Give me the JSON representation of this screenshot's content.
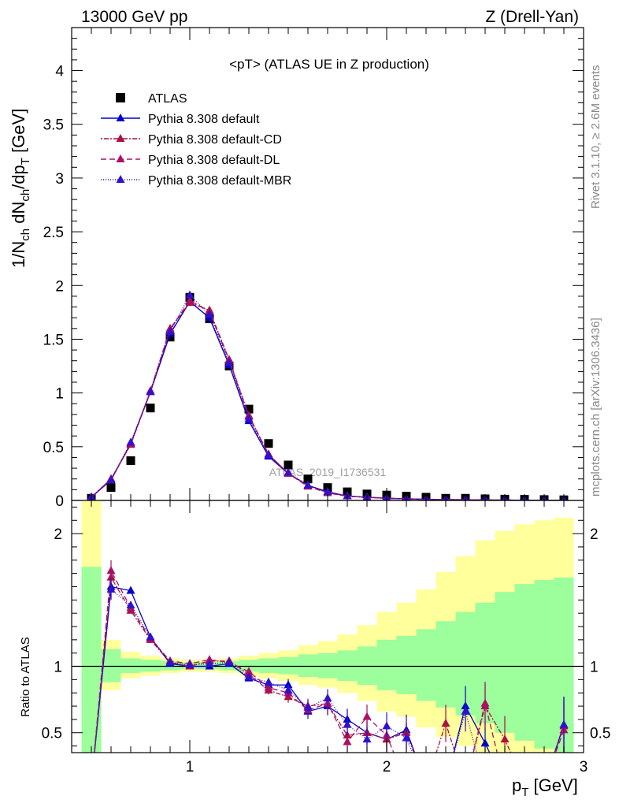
{
  "header": {
    "energy_label": "13000 GeV pp",
    "process_label": "Z (Drell-Yan)",
    "plot_title": "<pT> (ATLAS UE in Z production)",
    "watermark": "ATLAS_2019_I1736531",
    "side_rivet": "Rivet 3.1.10, ≥ 2.6M events",
    "side_mcplots": "mcplots.cern.ch [arXiv:1306.3436]"
  },
  "axes": {
    "main_ylabel": "1/N_ch dN_ch/dp_T [GeV]",
    "ratio_ylabel": "Ratio to ATLAS",
    "xlabel": "p_T [GeV]"
  },
  "chart_data": {
    "type": "line",
    "x": [
      0.5,
      0.6,
      0.7,
      0.8,
      0.9,
      1.0,
      1.1,
      1.2,
      1.3,
      1.4,
      1.5,
      1.6,
      1.7,
      1.8,
      1.9,
      2.0,
      2.1,
      2.2,
      2.3,
      2.4,
      2.5,
      2.6,
      2.7,
      2.8,
      2.9
    ],
    "xlim": [
      0.4,
      3.0
    ],
    "ylim": [
      0,
      4.4
    ],
    "yticks": [
      0,
      0.5,
      1,
      1.5,
      2,
      2.5,
      3,
      3.5,
      4
    ],
    "xticks": [
      1,
      2,
      3
    ],
    "ratio_ylim": [
      0.35,
      2.25
    ],
    "ratio_yticks": [
      0.5,
      1,
      2
    ],
    "legend_position": "top-left",
    "series": [
      {
        "name": "ATLAS",
        "color": "#000000",
        "marker": "square",
        "style": "points",
        "values": [
          0.02,
          0.12,
          0.37,
          0.86,
          1.52,
          1.89,
          1.69,
          1.25,
          0.85,
          0.53,
          0.33,
          0.2,
          0.12,
          0.08,
          0.06,
          0.05,
          0.04,
          0.03,
          0.02,
          0.02,
          0.015,
          0.012,
          0.01,
          0.008,
          0.006
        ]
      },
      {
        "name": "Pythia 8.308 default",
        "color": "#0000cc",
        "marker": "triangle",
        "dash": "",
        "values": [
          0.03,
          0.19,
          0.53,
          1.01,
          1.55,
          1.85,
          1.7,
          1.26,
          0.74,
          0.41,
          0.25,
          0.14,
          0.08,
          0.04,
          0.03,
          0.02,
          0.015,
          0.01,
          0.008,
          0.006,
          0.004,
          0.003,
          0.002,
          0.002,
          0.001
        ]
      },
      {
        "name": "Pythia 8.308 default-CD",
        "color": "#aa1144",
        "marker": "triangle",
        "dash": "2,2,6,2",
        "values": [
          0.03,
          0.2,
          0.52,
          1.02,
          1.6,
          1.84,
          1.77,
          1.31,
          0.79,
          0.43,
          0.25,
          0.14,
          0.07,
          0.04,
          0.03,
          0.02,
          0.015,
          0.01,
          0.008,
          0.006,
          0.004,
          0.003,
          0.002,
          0.002,
          0.001
        ]
      },
      {
        "name": "Pythia 8.308 default-DL",
        "color": "#aa1166",
        "marker": "triangle",
        "dash": "7,4",
        "values": [
          0.03,
          0.2,
          0.52,
          1.01,
          1.59,
          1.86,
          1.76,
          1.3,
          0.78,
          0.43,
          0.25,
          0.13,
          0.07,
          0.04,
          0.03,
          0.02,
          0.015,
          0.01,
          0.008,
          0.006,
          0.004,
          0.003,
          0.002,
          0.002,
          0.001
        ]
      },
      {
        "name": "Pythia 8.308 default-MBR",
        "color": "#3311cc",
        "marker": "triangle",
        "dash": "1,2",
        "values": [
          0.03,
          0.19,
          0.54,
          1.01,
          1.57,
          1.91,
          1.73,
          1.28,
          0.76,
          0.42,
          0.26,
          0.14,
          0.08,
          0.04,
          0.03,
          0.02,
          0.015,
          0.01,
          0.008,
          0.006,
          0.004,
          0.003,
          0.002,
          0.002,
          0.001
        ]
      }
    ],
    "ratio_series": [
      {
        "name": "Pythia 8.308 default",
        "values": [
          null,
          1.6,
          1.57,
          1.22,
          1.02,
          1.0,
          1.0,
          1.02,
          0.91,
          0.86,
          0.86,
          0.66,
          0.7,
          0.6,
          0.5,
          0.45,
          0.52,
          null,
          null,
          0.7,
          0.42,
          null,
          null,
          null,
          0.56
        ]
      },
      {
        "name": "Pythia 8.308 default-CD",
        "values": [
          null,
          1.67,
          1.42,
          1.2,
          1.03,
          1.0,
          1.04,
          1.04,
          0.94,
          0.82,
          0.77,
          0.7,
          0.72,
          0.48,
          0.5,
          0.45,
          0.5,
          null,
          0.57,
          null,
          0.7,
          0.45,
          null,
          null,
          0.55
        ]
      },
      {
        "name": "Pythia 8.308 default-DL",
        "values": [
          null,
          1.72,
          1.44,
          1.21,
          1.04,
          1.02,
          1.05,
          1.03,
          0.96,
          0.84,
          0.8,
          0.67,
          0.72,
          0.43,
          0.62,
          0.48,
          null,
          null,
          null,
          null,
          0.72,
          null,
          null,
          null,
          0.52
        ]
      },
      {
        "name": "Pythia 8.308 default-MBR",
        "values": [
          null,
          1.58,
          1.46,
          1.22,
          1.03,
          1.01,
          1.02,
          1.03,
          0.92,
          0.88,
          0.82,
          0.69,
          0.76,
          0.56,
          0.45,
          0.55,
          0.46,
          null,
          null,
          0.66,
          null,
          null,
          null,
          null,
          0.56
        ]
      }
    ],
    "band_green": [
      [
        0.25,
        1.75
      ],
      [
        0.88,
        1.13
      ],
      [
        0.95,
        1.06
      ],
      [
        0.96,
        1.05
      ],
      [
        0.97,
        1.04
      ],
      [
        0.98,
        1.03
      ],
      [
        0.98,
        1.03
      ],
      [
        0.97,
        1.04
      ],
      [
        0.96,
        1.05
      ],
      [
        0.95,
        1.06
      ],
      [
        0.94,
        1.07
      ],
      [
        0.92,
        1.09
      ],
      [
        0.91,
        1.1
      ],
      [
        0.89,
        1.12
      ],
      [
        0.86,
        1.15
      ],
      [
        0.82,
        1.2
      ],
      [
        0.79,
        1.23
      ],
      [
        0.74,
        1.28
      ],
      [
        0.69,
        1.34
      ],
      [
        0.63,
        1.41
      ],
      [
        0.57,
        1.48
      ],
      [
        0.5,
        1.56
      ],
      [
        0.44,
        1.62
      ],
      [
        0.38,
        1.65
      ],
      [
        0.35,
        1.67
      ]
    ],
    "band_yellow": [
      [
        0.2,
        2.3
      ],
      [
        0.82,
        1.2
      ],
      [
        0.91,
        1.11
      ],
      [
        0.93,
        1.08
      ],
      [
        0.95,
        1.06
      ],
      [
        0.96,
        1.05
      ],
      [
        0.96,
        1.05
      ],
      [
        0.95,
        1.06
      ],
      [
        0.93,
        1.08
      ],
      [
        0.91,
        1.1
      ],
      [
        0.89,
        1.12
      ],
      [
        0.86,
        1.16
      ],
      [
        0.84,
        1.19
      ],
      [
        0.8,
        1.24
      ],
      [
        0.74,
        1.31
      ],
      [
        0.66,
        1.41
      ],
      [
        0.62,
        1.48
      ],
      [
        0.54,
        1.58
      ],
      [
        0.47,
        1.71
      ],
      [
        0.4,
        1.83
      ],
      [
        0.35,
        1.95
      ],
      [
        0.3,
        2.02
      ],
      [
        0.26,
        2.07
      ],
      [
        0.24,
        2.1
      ],
      [
        0.22,
        2.12
      ]
    ]
  }
}
